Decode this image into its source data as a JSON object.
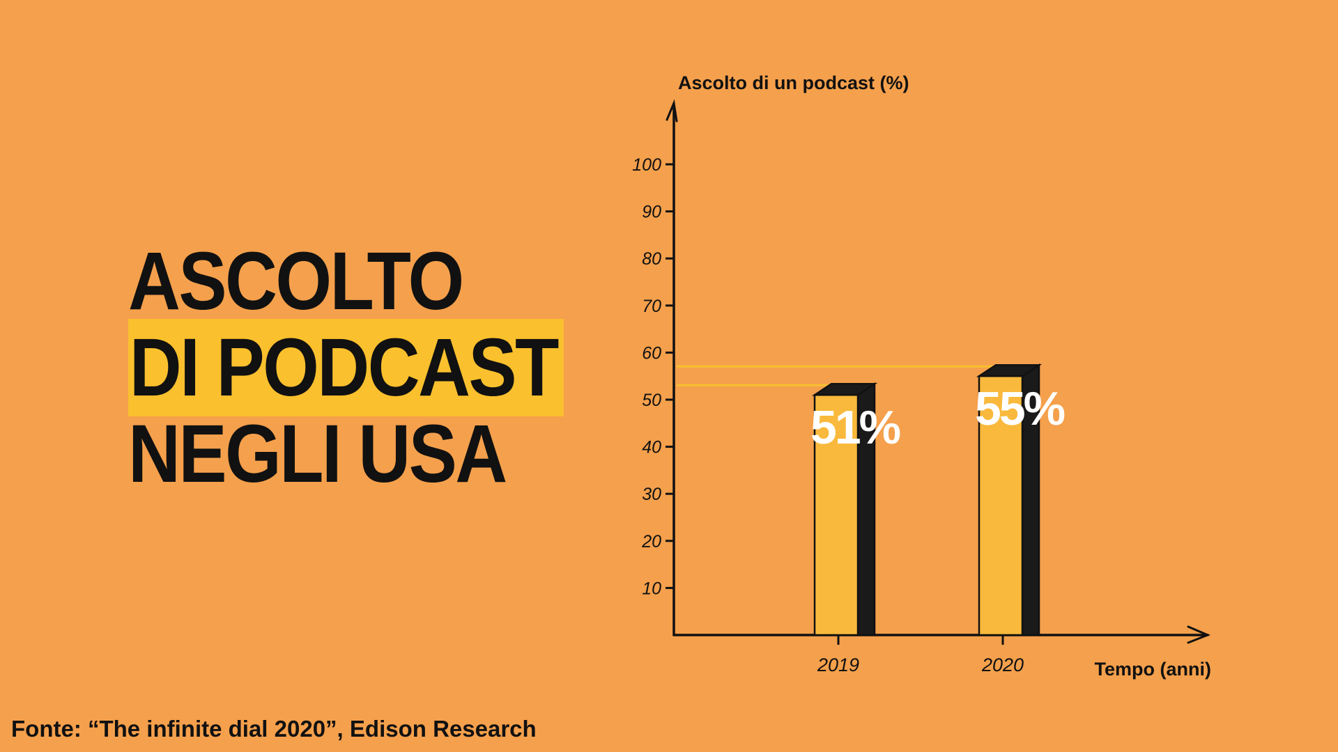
{
  "colors": {
    "background": "#f5a04c",
    "highlight": "#fbc02d",
    "bar_front": "#f9b93c",
    "bar_shade": "#1a1a1a",
    "text": "#111111",
    "label": "#ffffff",
    "guide": "#f7c02f"
  },
  "title": {
    "line1": "ASCOLTO",
    "line2": "DI PODCAST",
    "line3": "NEGLI USA"
  },
  "source": "Fonte: “The infinite dial 2020”, Edison Research",
  "chart_data": {
    "type": "bar",
    "categories": [
      "2019",
      "2020"
    ],
    "values": [
      51,
      55
    ],
    "value_labels": [
      "51%",
      "55%"
    ],
    "ylabel": "Ascolto di un podcast (%)",
    "xlabel": "Tempo (anni)",
    "ylim": [
      0,
      100
    ],
    "yticks": [
      10,
      20,
      30,
      40,
      50,
      60,
      70,
      80,
      90,
      100
    ],
    "grid": false,
    "legend": "none"
  }
}
